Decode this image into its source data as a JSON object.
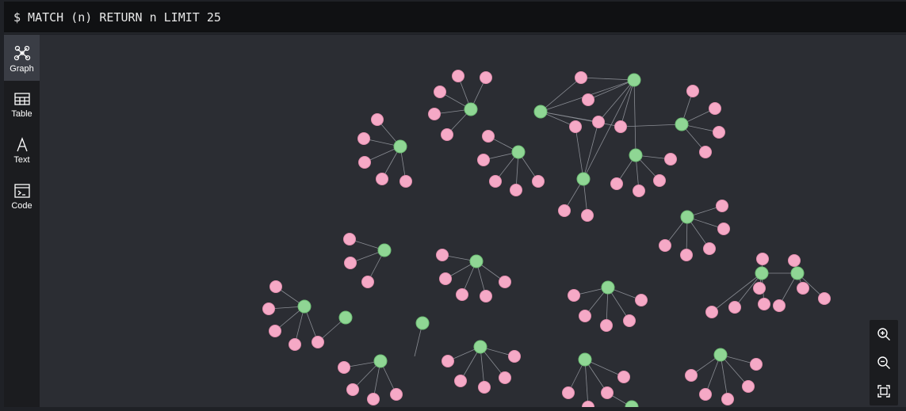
{
  "query": {
    "text": "$ MATCH (n) RETURN n LIMIT 25"
  },
  "sidebar": {
    "items": [
      {
        "label": "Graph",
        "icon": "graph-icon",
        "active": true
      },
      {
        "label": "Table",
        "icon": "table-icon",
        "active": false
      },
      {
        "label": "Text",
        "icon": "text-icon",
        "active": false
      },
      {
        "label": "Code",
        "icon": "code-icon",
        "active": false
      }
    ]
  },
  "zoom": {
    "buttons": [
      "zoom-in-icon",
      "zoom-out-icon",
      "fit-to-screen-icon"
    ]
  },
  "colors": {
    "green_node": "#8fd694",
    "pink_node": "#f5a9c6",
    "edge": "#8a8d94",
    "canvas": "#2b2d33"
  }
}
